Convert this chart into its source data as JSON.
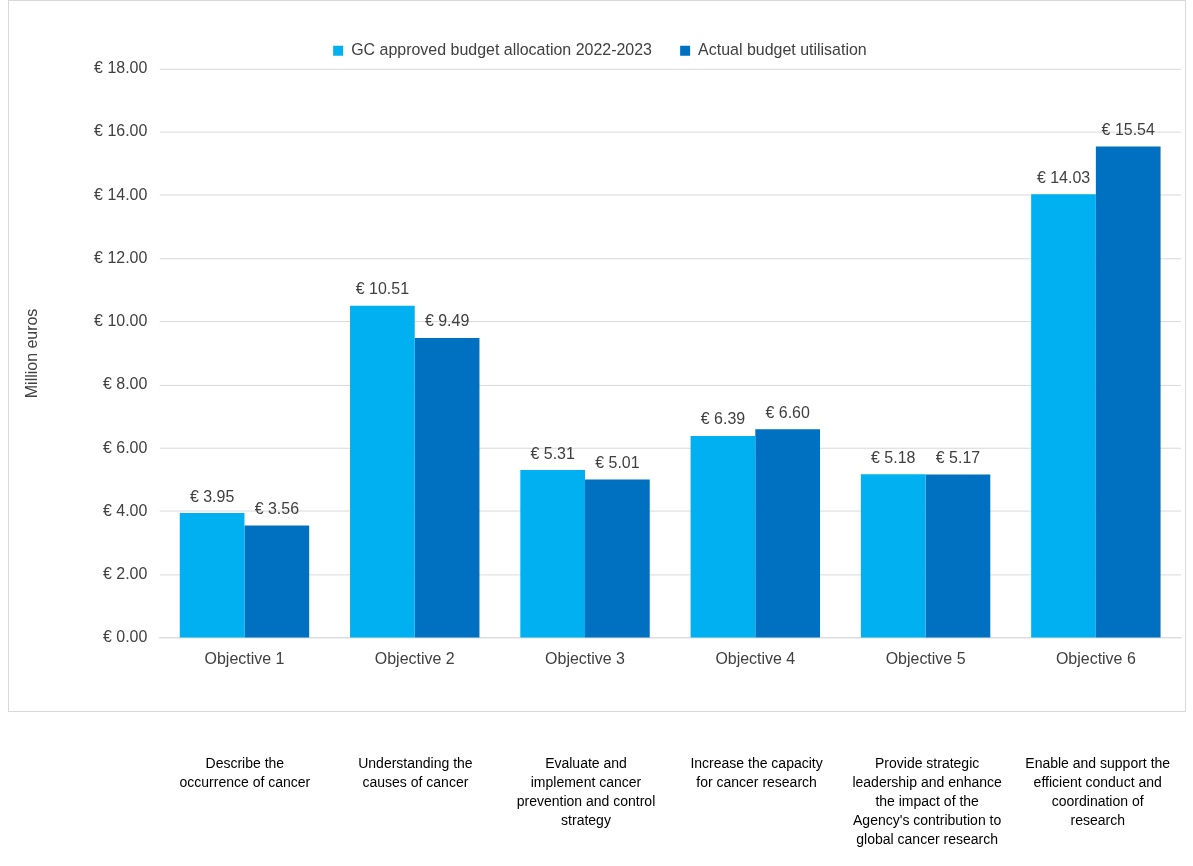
{
  "chart_data": {
    "type": "bar",
    "ylabel": "Million euros",
    "categories": [
      "Objective 1",
      "Objective 2",
      "Objective 3",
      "Objective 4",
      "Objective 5",
      "Objective 6"
    ],
    "series": [
      {
        "name": "GC approved budget allocation 2022-2023",
        "color": "#00b0f0",
        "values": [
          3.95,
          10.51,
          5.31,
          6.39,
          5.18,
          14.03
        ],
        "value_labels": [
          "€ 3.95",
          "€ 10.51",
          "€ 5.31",
          "€ 6.39",
          "€ 5.18",
          "€ 14.03"
        ]
      },
      {
        "name": "Actual budget utilisation",
        "color": "#0070c0",
        "values": [
          3.56,
          9.49,
          5.01,
          6.6,
          5.17,
          15.54
        ],
        "value_labels": [
          "€ 3.56",
          "€ 9.49",
          "€ 5.01",
          "€ 6.60",
          "€ 5.17",
          "€ 15.54"
        ]
      }
    ],
    "ylim": [
      0,
      18
    ],
    "yticks": [
      {
        "value": 0,
        "label": "€ 0.00"
      },
      {
        "value": 2,
        "label": "€ 2.00"
      },
      {
        "value": 4,
        "label": "€ 4.00"
      },
      {
        "value": 6,
        "label": "€ 6.00"
      },
      {
        "value": 8,
        "label": "€ 8.00"
      },
      {
        "value": 10,
        "label": "€ 10.00"
      },
      {
        "value": 12,
        "label": "€ 12.00"
      },
      {
        "value": 14,
        "label": "€ 14.00"
      },
      {
        "value": 16,
        "label": "€ 16.00"
      },
      {
        "value": 18,
        "label": "€ 18.00"
      }
    ],
    "grid": "y",
    "legend": "top",
    "annotations": [
      "Describe the occurrence of cancer",
      "Understanding the causes of cancer",
      "Evaluate and implement cancer prevention and control strategy",
      "Increase the capacity for cancer research",
      "Provide strategic leadership and enhance the impact of the Agency's contribution to global cancer research",
      "Enable and support the efficient conduct and coordination of research"
    ]
  }
}
